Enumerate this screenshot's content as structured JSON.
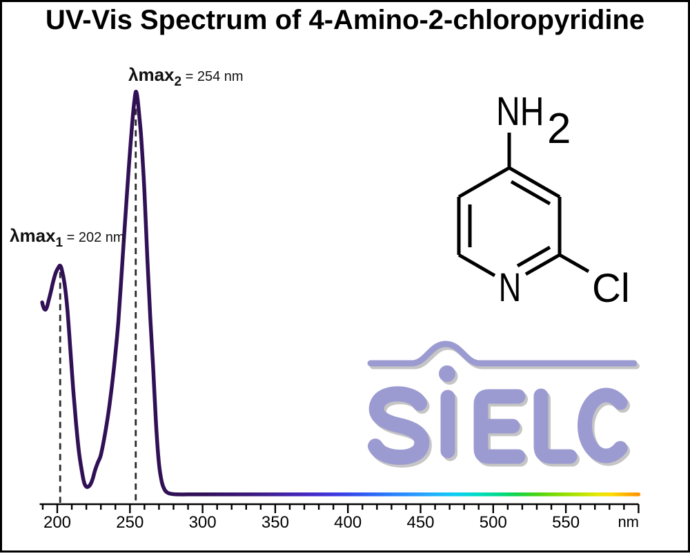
{
  "title": "UV-Vis Spectrum of 4-Amino-2-chloropyridine",
  "annotations": {
    "peak1": {
      "label": "λmax",
      "subscript": "1",
      "value": " = 202 nm"
    },
    "peak2": {
      "label": "λmax",
      "subscript": "2",
      "value": " = 254 nm"
    }
  },
  "molecule": {
    "amine_group": "NH",
    "amine_subscript": "2",
    "ring_nitrogen": "N",
    "chlorine": "Cl"
  },
  "logo": {
    "text": "SiELC",
    "color": "#9c9bd1",
    "shadow_color": "#8d8d8d"
  },
  "chart_data": {
    "type": "line",
    "title": "UV-Vis Spectrum of 4-Amino-2-chloropyridine",
    "xlabel": "nm",
    "x_range": [
      190,
      600
    ],
    "minor_tick_step": 10,
    "major_tick_step": 50,
    "x_tick_labels": [
      "200",
      "250",
      "300",
      "350",
      "400",
      "450",
      "500",
      "550"
    ],
    "ylim": [
      0,
      1.05
    ],
    "grid": false,
    "curve_color": "#311156",
    "peaks": [
      {
        "name": "λmax1",
        "wavelength_nm": 202,
        "absorbance": 0.569
      },
      {
        "name": "λmax2",
        "wavelength_nm": 254,
        "absorbance": 1.0
      }
    ],
    "series": [
      {
        "name": "Absorbance",
        "points": [
          [
            189.6,
            0.478
          ],
          [
            190.3,
            0.468
          ],
          [
            191.1,
            0.4615
          ],
          [
            192,
            0.4605
          ],
          [
            193,
            0.468
          ],
          [
            194,
            0.482
          ],
          [
            195.5,
            0.503
          ],
          [
            197,
            0.527
          ],
          [
            199,
            0.552
          ],
          [
            201,
            0.566
          ],
          [
            202,
            0.569
          ],
          [
            203,
            0.561
          ],
          [
            205,
            0.525
          ],
          [
            207,
            0.46
          ],
          [
            209,
            0.36
          ],
          [
            211,
            0.26
          ],
          [
            213,
            0.175
          ],
          [
            215,
            0.105
          ],
          [
            217,
            0.058
          ],
          [
            218.5,
            0.031
          ],
          [
            220,
            0.021
          ],
          [
            221.5,
            0.0215
          ],
          [
            223,
            0.028
          ],
          [
            224.5,
            0.042
          ],
          [
            226,
            0.062
          ],
          [
            228,
            0.082
          ],
          [
            230,
            0.1
          ],
          [
            233,
            0.155
          ],
          [
            236,
            0.225
          ],
          [
            239,
            0.315
          ],
          [
            242,
            0.43
          ],
          [
            245,
            0.59
          ],
          [
            248,
            0.75
          ],
          [
            250,
            0.85
          ],
          [
            252,
            0.94
          ],
          [
            253,
            0.975
          ],
          [
            254,
            1.0
          ],
          [
            255,
            0.99
          ],
          [
            256,
            0.958
          ],
          [
            257,
            0.92
          ],
          [
            258,
            0.875
          ],
          [
            260,
            0.75
          ],
          [
            262,
            0.585
          ],
          [
            264,
            0.44
          ],
          [
            266,
            0.315
          ],
          [
            268,
            0.175
          ],
          [
            270,
            0.078
          ],
          [
            272,
            0.032
          ],
          [
            274,
            0.013
          ],
          [
            276,
            0.006
          ],
          [
            279,
            0.003
          ],
          [
            283,
            0.002
          ],
          [
            290,
            0.002
          ],
          [
            300,
            0.002
          ],
          [
            320,
            0.002
          ],
          [
            350,
            0.002
          ],
          [
            400,
            0.002
          ],
          [
            450,
            0.002
          ],
          [
            500,
            0.002
          ],
          [
            550,
            0.002
          ],
          [
            600,
            0.002
          ]
        ]
      }
    ],
    "spectrum_gradient": [
      {
        "nm": 190,
        "color": "#311156"
      },
      {
        "nm": 300,
        "color": "#311156"
      },
      {
        "nm": 310,
        "color": "#351264"
      },
      {
        "nm": 330,
        "color": "#3a1877"
      },
      {
        "nm": 350,
        "color": "#41209a"
      },
      {
        "nm": 370,
        "color": "#4527c0"
      },
      {
        "nm": 385,
        "color": "#4233d8"
      },
      {
        "nm": 400,
        "color": "#3746e8"
      },
      {
        "nm": 415,
        "color": "#2f62f5"
      },
      {
        "nm": 430,
        "color": "#2c7ffb"
      },
      {
        "nm": 445,
        "color": "#2996ff"
      },
      {
        "nm": 460,
        "color": "#1fb3fd"
      },
      {
        "nm": 475,
        "color": "#0cd0f0"
      },
      {
        "nm": 490,
        "color": "#00dcc0"
      },
      {
        "nm": 505,
        "color": "#00da85"
      },
      {
        "nm": 515,
        "color": "#0ed54d"
      },
      {
        "nm": 530,
        "color": "#49d411"
      },
      {
        "nm": 545,
        "color": "#86dc00"
      },
      {
        "nm": 560,
        "color": "#b8e300"
      },
      {
        "nm": 572,
        "color": "#e6e800"
      },
      {
        "nm": 582,
        "color": "#ffd900"
      },
      {
        "nm": 591,
        "color": "#ffb300"
      },
      {
        "nm": 600,
        "color": "#ff9400"
      }
    ]
  }
}
